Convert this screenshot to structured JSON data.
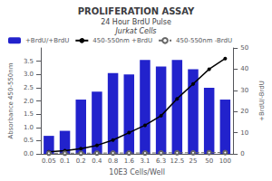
{
  "chart_data": {
    "type": "bar",
    "title": "PROLIFERATION ASSAY",
    "subtitle": [
      "24 Hour BrdU Pulse",
      "Jurkat Cells"
    ],
    "xlabel": "10E3 Cells/Well",
    "ylabel": "Absorbance 450-550nm",
    "y2label": "+BrdU/-BrdU",
    "categories": [
      "0.05",
      "0.1",
      "0.2",
      "0.4",
      "0.8",
      "1.6",
      "3.1",
      "6.3",
      "12.5",
      "25",
      "50",
      "100"
    ],
    "series": [
      {
        "name": "+BrdU/+BrdU",
        "type": "bar",
        "color": "#2222cc",
        "values": [
          0.68,
          0.87,
          2.05,
          2.35,
          3.05,
          3.0,
          3.55,
          3.3,
          3.55,
          3.2,
          2.5,
          2.05
        ]
      },
      {
        "name": "450-550nm +BrdU",
        "type": "line",
        "axis": "y2",
        "color": "#000000",
        "marker": "circle",
        "line_style": "solid",
        "values": [
          1.0,
          1.5,
          2.5,
          4.0,
          6.5,
          10.0,
          13.5,
          18.0,
          26.0,
          33.0,
          40.0,
          45.0
        ]
      },
      {
        "name": "450-550nm -BrdU",
        "type": "line",
        "axis": "y2",
        "color": "#666666",
        "marker": "open_circle",
        "line_style": "dashed",
        "values": [
          0.3,
          0.3,
          0.3,
          0.35,
          0.4,
          0.4,
          0.4,
          0.45,
          0.5,
          0.5,
          0.55,
          0.6
        ]
      }
    ],
    "ylim": [
      0,
      4.0
    ],
    "yticks": [
      {
        "value": 0,
        "label": "0.0"
      },
      0.5,
      {
        "value": 1,
        "label": "1.0"
      },
      1.5,
      {
        "value": 2,
        "label": "2.0"
      },
      2.5,
      {
        "value": 3,
        "label": "3.0"
      },
      3.5
    ],
    "y2lim": [
      0,
      50
    ],
    "y2ticks": [
      0,
      10,
      20,
      30,
      40,
      50
    ],
    "grid": false,
    "legend": "upper left"
  }
}
